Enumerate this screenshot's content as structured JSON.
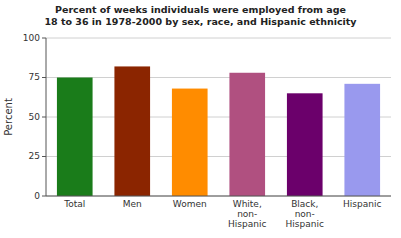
{
  "chart_data": {
    "type": "bar",
    "title": "Percent of weeks individuals were employed from age\n18 to 36 in 1978-2000 by sex, race, and Hispanic ethnicity",
    "y_label": "Percent",
    "categories": [
      "Total",
      "Men",
      "Women",
      "White,\nnon-\nHispanic",
      "Black,\nnon-\nHispanic",
      "Hispanic"
    ],
    "values": [
      75,
      82,
      68,
      78,
      65,
      71
    ],
    "colors": [
      "#1a7c1a",
      "#8b2500",
      "#ff8c00",
      "#b05080",
      "#6b006b",
      "#9999ee"
    ],
    "ylim": [
      0,
      100
    ],
    "yticks": [
      0,
      25,
      50,
      75,
      100
    ],
    "grid": true
  }
}
